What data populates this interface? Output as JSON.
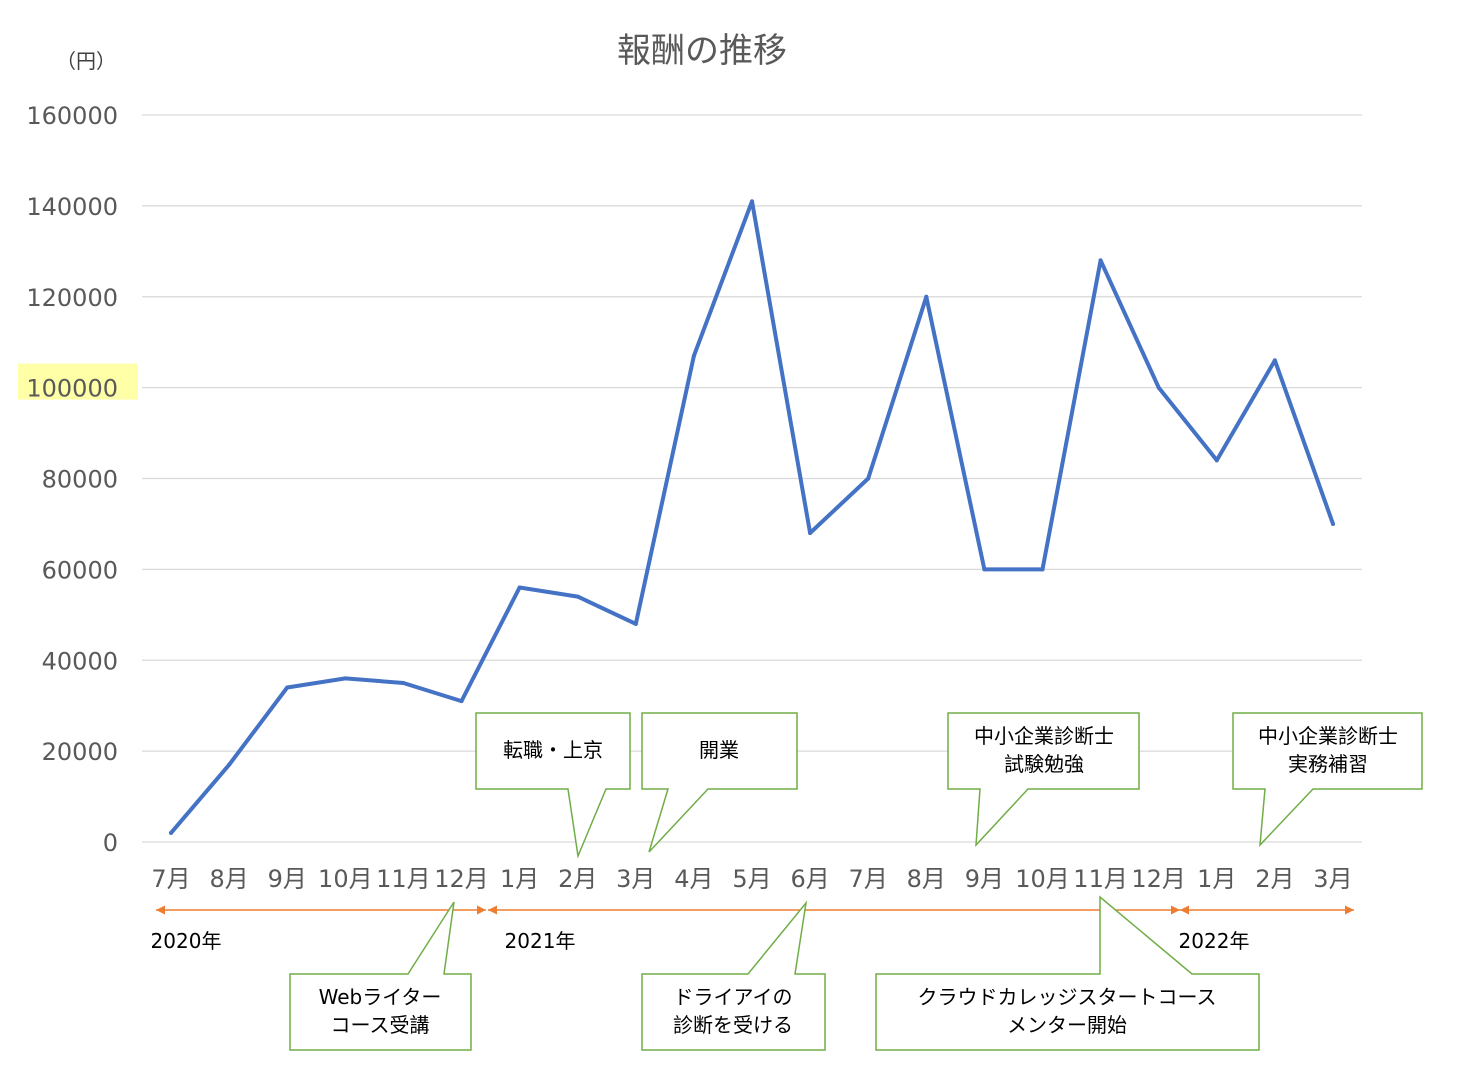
{
  "chart_data": {
    "type": "line",
    "title": "報酬の推移",
    "ylabel": "（円）",
    "xlabel": "",
    "ylim": [
      0,
      160000
    ],
    "yticks": [
      0,
      20000,
      40000,
      60000,
      80000,
      100000,
      120000,
      140000,
      160000
    ],
    "highlighted_ytick": 100000,
    "categories": [
      "7月",
      "8月",
      "9月",
      "10月",
      "11月",
      "12月",
      "1月",
      "2月",
      "3月",
      "4月",
      "5月",
      "6月",
      "7月",
      "8月",
      "9月",
      "10月",
      "11月",
      "12月",
      "1月",
      "2月",
      "3月"
    ],
    "series": [
      {
        "color": "#4472C4",
        "values": [
          2000,
          17000,
          34000,
          36000,
          35000,
          31000,
          56000,
          54000,
          48000,
          107000,
          141000,
          68000,
          80000,
          120000,
          60000,
          60000,
          128000,
          100000,
          84000,
          106000,
          70000
        ]
      }
    ],
    "grid": true,
    "years": [
      "2020年",
      "2021年",
      "2022年"
    ],
    "annotations": {
      "job_change": [
        "転職・上京"
      ],
      "opening": [
        "開業"
      ],
      "sme_study": [
        "中小企業診断士",
        "試験勉強"
      ],
      "sme_practice": [
        "中小企業診断士",
        "実務補習"
      ],
      "web_writer": [
        "Webライター",
        "コース受講"
      ],
      "dry_eye": [
        "ドライアイの",
        "診断を受ける"
      ],
      "crowd_college": [
        "クラウドカレッジスタートコース",
        "メンター開始"
      ]
    },
    "colors": {
      "line": "#4472C4",
      "grid": "#D9D9D9",
      "callout_border": "#70AD47",
      "year_arrow": "#ED7D31",
      "highlight": "#FFFF99"
    }
  }
}
